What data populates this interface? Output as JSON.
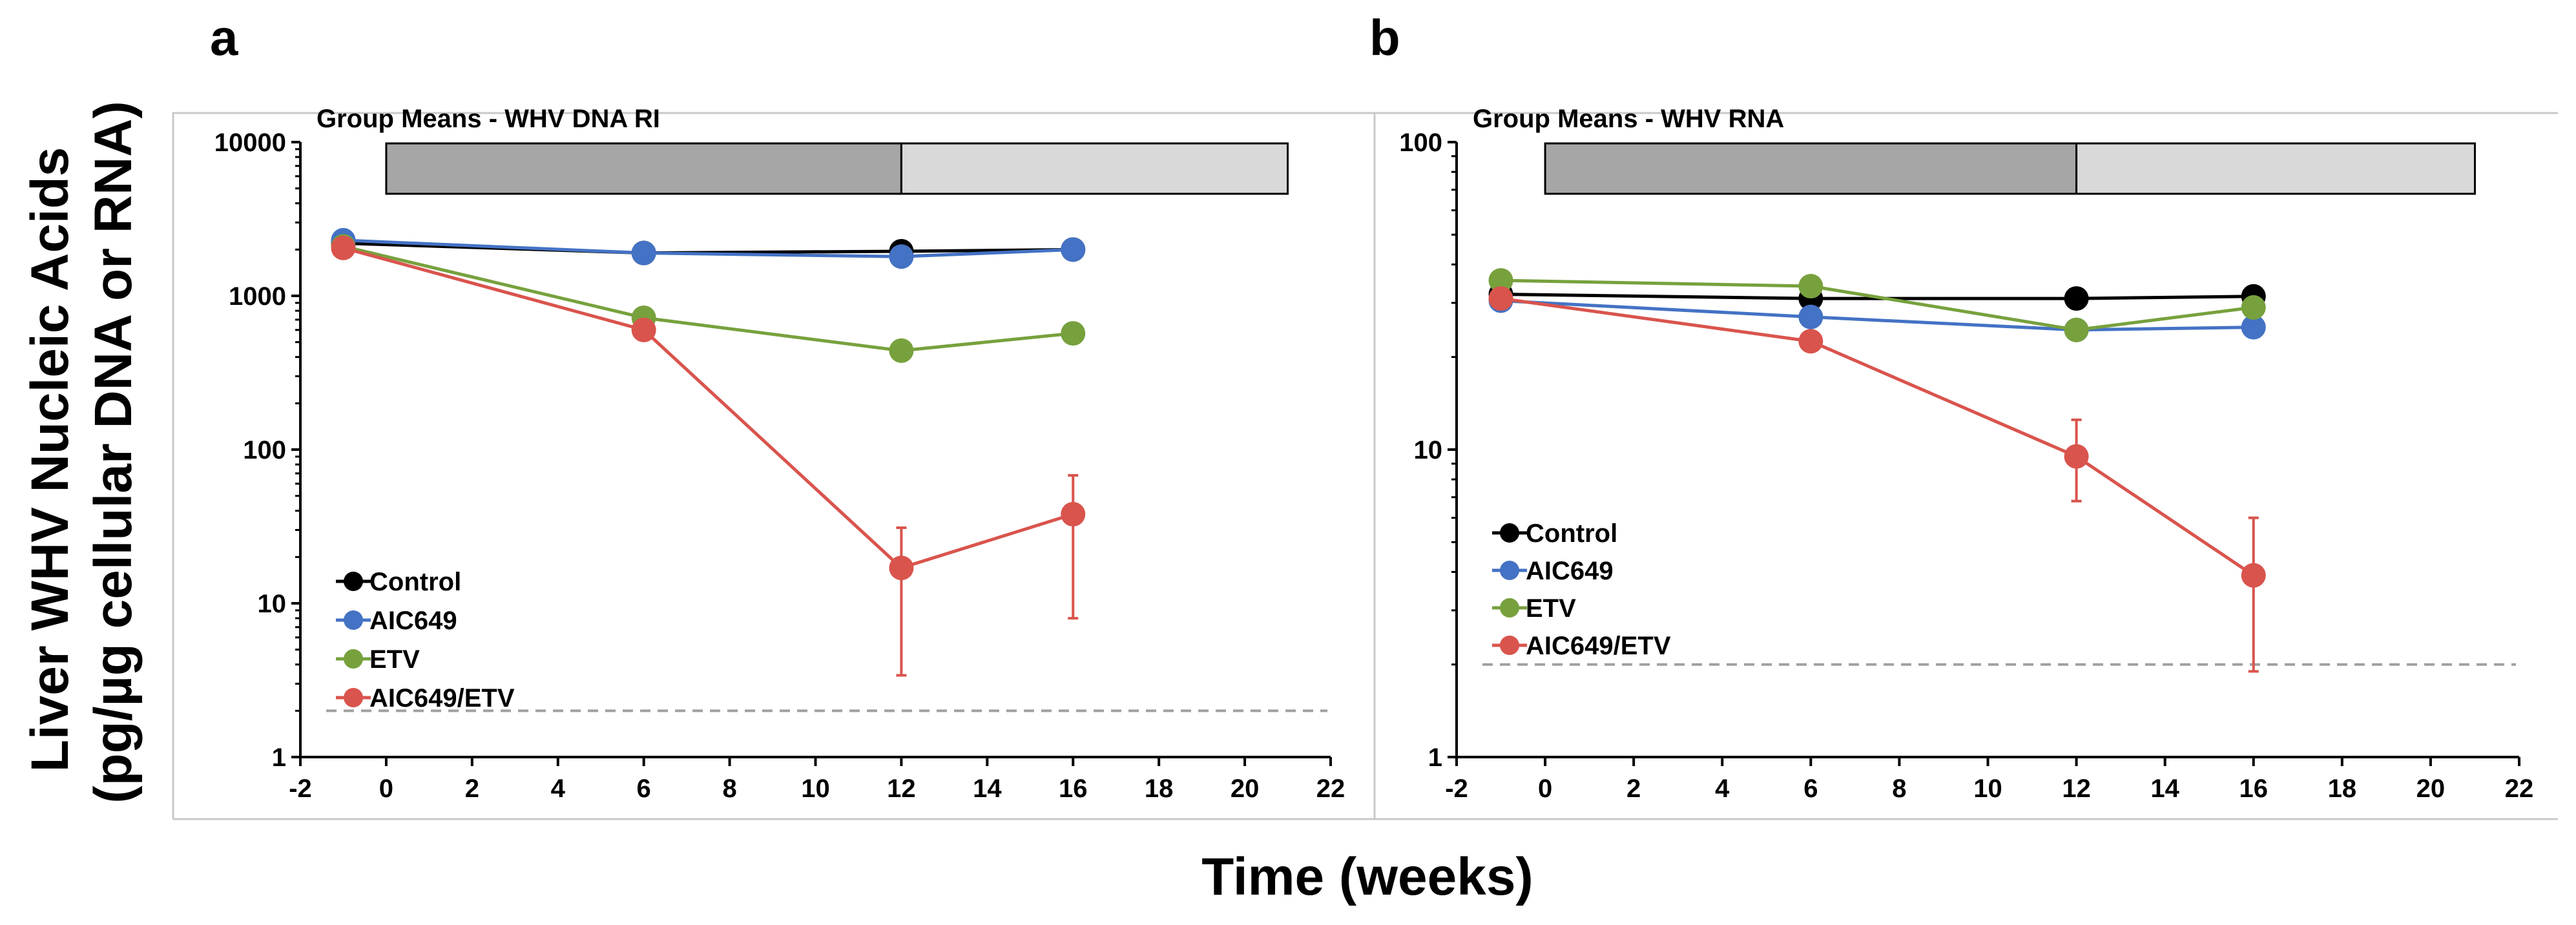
{
  "figure": {
    "ylabel_line1": "Liver WHV Nucleic Acids",
    "ylabel_line2": "(pg/µg cellular DNA or RNA)",
    "xlabel": "Time (weeks)"
  },
  "colors": {
    "Control": "#000000",
    "AIC649": "#4472C4",
    "ETV": "#77A13D",
    "AIC649/ETV": "#D9544D",
    "dark_bar": "#a6a6a6",
    "light_bar": "#d9d9d9",
    "lod_line": "#a0a0a0"
  },
  "chart_data": [
    {
      "type": "line",
      "panel": "a",
      "title": "Group Means - WHV DNA RI",
      "yscale": "log",
      "xlim": [
        -2,
        22
      ],
      "ylim": [
        1,
        10000
      ],
      "xticks": [
        -2,
        0,
        2,
        4,
        6,
        8,
        10,
        12,
        14,
        16,
        18,
        20,
        22
      ],
      "yticks": [
        1,
        10,
        100,
        1000,
        10000
      ],
      "x": [
        -1,
        6,
        12,
        16
      ],
      "treatment_bars": [
        {
          "start": 0,
          "end": 12,
          "shade": "dark"
        },
        {
          "start": 12,
          "end": 21,
          "shade": "light"
        }
      ],
      "lod": 2,
      "series": [
        {
          "name": "Control",
          "values": [
            2200,
            1900,
            1950,
            2000
          ]
        },
        {
          "name": "AIC649",
          "values": [
            2300,
            1900,
            1800,
            2000
          ]
        },
        {
          "name": "ETV",
          "values": [
            2100,
            720,
            440,
            570
          ]
        },
        {
          "name": "AIC649/ETV",
          "values": [
            2050,
            600,
            17,
            38
          ],
          "error_upper": [
            null,
            null,
            31,
            68
          ],
          "error_lower": [
            null,
            null,
            3.4,
            8
          ]
        }
      ],
      "legend": [
        "Control",
        "AIC649",
        "ETV",
        "AIC649/ETV"
      ]
    },
    {
      "type": "line",
      "panel": "b",
      "title": "Group Means - WHV RNA",
      "yscale": "log",
      "xlim": [
        -2,
        22
      ],
      "ylim": [
        1,
        100
      ],
      "xticks": [
        -2,
        0,
        2,
        4,
        6,
        8,
        10,
        12,
        14,
        16,
        18,
        20,
        22
      ],
      "yticks": [
        1,
        10,
        100
      ],
      "x": [
        -1,
        6,
        12,
        16
      ],
      "treatment_bars": [
        {
          "start": 0,
          "end": 12,
          "shade": "dark"
        },
        {
          "start": 12,
          "end": 21,
          "shade": "light"
        }
      ],
      "lod": 2,
      "series": [
        {
          "name": "Control",
          "values": [
            32,
            31,
            31,
            31.5
          ]
        },
        {
          "name": "AIC649",
          "values": [
            30.5,
            27,
            24.5,
            25
          ]
        },
        {
          "name": "ETV",
          "values": [
            35.5,
            34,
            24.5,
            29
          ]
        },
        {
          "name": "AIC649/ETV",
          "values": [
            31,
            22.5,
            9.5,
            3.9
          ],
          "error_upper": [
            null,
            null,
            12.5,
            6
          ],
          "error_lower": [
            null,
            null,
            6.8,
            1.9
          ]
        }
      ],
      "legend": [
        "Control",
        "AIC649",
        "ETV",
        "AIC649/ETV"
      ]
    }
  ]
}
